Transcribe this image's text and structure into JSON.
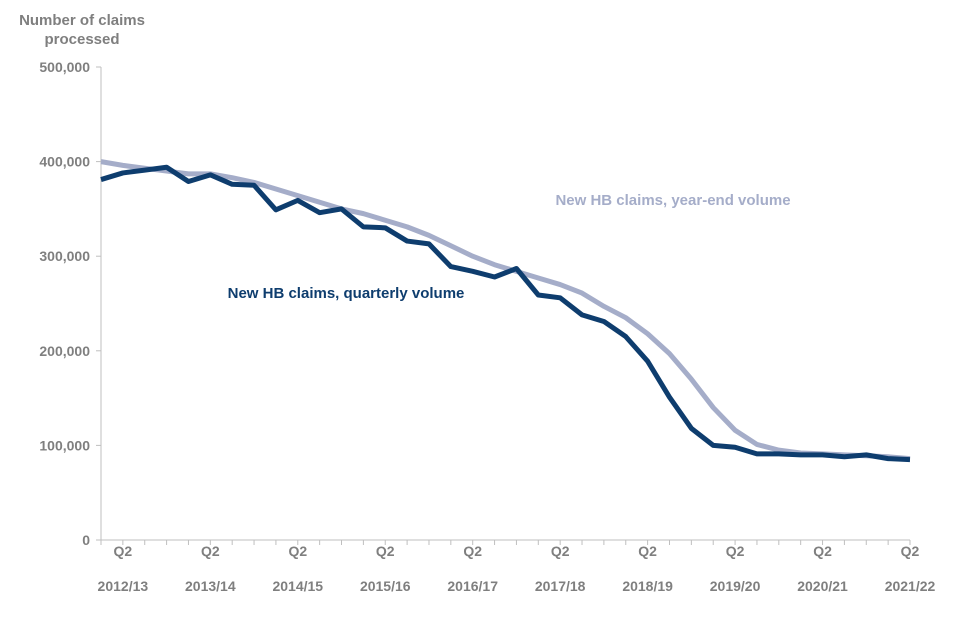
{
  "chart_data": {
    "type": "line",
    "title": "",
    "ylabel": [
      "Number of claims",
      "processed"
    ],
    "xlabel": "",
    "ylim": [
      0,
      500000
    ],
    "yticks": [
      0,
      100000,
      200000,
      300000,
      400000,
      500000
    ],
    "ytick_labels": [
      "0",
      "100,000",
      "200,000",
      "300,000",
      "400,000",
      "500,000"
    ],
    "grid": false,
    "x_ticks": [
      {
        "index": 1,
        "line1": "Q2",
        "line2": "2012/13"
      },
      {
        "index": 5,
        "line1": "Q2",
        "line2": "2013/14"
      },
      {
        "index": 9,
        "line1": "Q2",
        "line2": "2014/15"
      },
      {
        "index": 13,
        "line1": "Q2",
        "line2": "2015/16"
      },
      {
        "index": 17,
        "line1": "Q2",
        "line2": "2016/17"
      },
      {
        "index": 21,
        "line1": "Q2",
        "line2": "2017/18"
      },
      {
        "index": 25,
        "line1": "Q2",
        "line2": "2018/19"
      },
      {
        "index": 29,
        "line1": "Q2",
        "line2": "2019/20"
      },
      {
        "index": 33,
        "line1": "Q2",
        "line2": "2020/21"
      },
      {
        "index": 37,
        "line1": "Q2",
        "line2": "2021/22"
      }
    ],
    "series": [
      {
        "name": "New HB claims, year-end volume",
        "color": "#a5adc9",
        "values": [
          400000,
          396000,
          393000,
          390000,
          387000,
          387000,
          383000,
          378000,
          371000,
          364000,
          357000,
          350000,
          345000,
          338000,
          331000,
          322000,
          311000,
          300000,
          291000,
          284000,
          277000,
          270000,
          261000,
          247000,
          235000,
          218000,
          197000,
          170000,
          140000,
          116000,
          101000,
          95000,
          92000,
          91000,
          90000,
          89000,
          88000,
          86000
        ]
      },
      {
        "name": "New HB claims, quarterly volume",
        "color": "#0e3d6e",
        "values": [
          381000,
          388000,
          391000,
          394000,
          379000,
          386000,
          376000,
          375000,
          349000,
          359000,
          346000,
          350000,
          331000,
          330000,
          316000,
          313000,
          289000,
          284000,
          278000,
          287000,
          259000,
          256000,
          238000,
          231000,
          215000,
          189000,
          151000,
          118000,
          100000,
          98000,
          91000,
          91000,
          90000,
          90000,
          88000,
          90000,
          86000,
          85000
        ]
      }
    ]
  }
}
